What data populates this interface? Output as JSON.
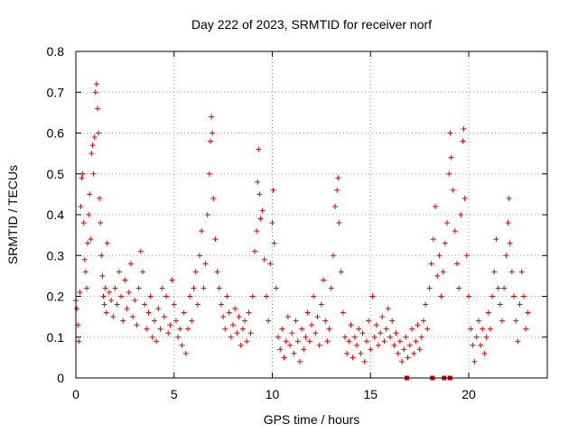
{
  "chart_data": {
    "type": "scatter",
    "title": "Day 222 of 2023, SRMTID for receiver norf",
    "xlabel": "GPS time / hours",
    "ylabel": "SRMTID / TECUs",
    "xlim": [
      0,
      24
    ],
    "ylim": [
      0,
      0.8
    ],
    "xticks": [
      0,
      5,
      10,
      15,
      20
    ],
    "yticks": [
      0,
      0.1,
      0.2,
      0.3,
      0.4,
      0.5,
      0.6,
      0.7,
      0.8
    ],
    "xtick_labels": [
      "0",
      "5",
      "10",
      "15",
      "20"
    ],
    "ytick_labels": [
      "0",
      "0.1",
      "0.2",
      "0.3",
      "0.4",
      "0.5",
      "0.6",
      "0.7",
      "0.8"
    ],
    "grid": true,
    "marker": "+",
    "color": "#e00000",
    "series": [
      {
        "name": "SRMTID",
        "points": [
          [
            0.0,
            0.19
          ],
          [
            0.05,
            0.17
          ],
          [
            0.1,
            0.13
          ],
          [
            0.15,
            0.09
          ],
          [
            0.2,
            0.21
          ],
          [
            0.25,
            0.42
          ],
          [
            0.3,
            0.49
          ],
          [
            0.35,
            0.5
          ],
          [
            0.4,
            0.38
          ],
          [
            0.45,
            0.29
          ],
          [
            0.5,
            0.26
          ],
          [
            0.55,
            0.22
          ],
          [
            0.6,
            0.33
          ],
          [
            0.65,
            0.4
          ],
          [
            0.7,
            0.45
          ],
          [
            0.75,
            0.34
          ],
          [
            0.8,
            0.55
          ],
          [
            0.85,
            0.57
          ],
          [
            0.9,
            0.5
          ],
          [
            0.95,
            0.59
          ],
          [
            1.0,
            0.7
          ],
          [
            1.05,
            0.72
          ],
          [
            1.1,
            0.66
          ],
          [
            1.15,
            0.6
          ],
          [
            1.2,
            0.44
          ],
          [
            1.25,
            0.38
          ],
          [
            1.3,
            0.3
          ],
          [
            1.35,
            0.25
          ],
          [
            1.4,
            0.2
          ],
          [
            1.45,
            0.18
          ],
          [
            1.5,
            0.22
          ],
          [
            1.55,
            0.16
          ],
          [
            1.6,
            0.33
          ],
          [
            1.7,
            0.21
          ],
          [
            1.8,
            0.19
          ],
          [
            1.9,
            0.15
          ],
          [
            2.0,
            0.22
          ],
          [
            2.1,
            0.18
          ],
          [
            2.2,
            0.26
          ],
          [
            2.3,
            0.2
          ],
          [
            2.4,
            0.14
          ],
          [
            2.5,
            0.24
          ],
          [
            2.6,
            0.17
          ],
          [
            2.7,
            0.21
          ],
          [
            2.8,
            0.28
          ],
          [
            2.9,
            0.15
          ],
          [
            3.0,
            0.19
          ],
          [
            3.1,
            0.13
          ],
          [
            3.2,
            0.22
          ],
          [
            3.3,
            0.31
          ],
          [
            3.4,
            0.26
          ],
          [
            3.5,
            0.18
          ],
          [
            3.6,
            0.12
          ],
          [
            3.7,
            0.16
          ],
          [
            3.8,
            0.2
          ],
          [
            3.9,
            0.1
          ],
          [
            4.0,
            0.14
          ],
          [
            4.1,
            0.09
          ],
          [
            4.2,
            0.17
          ],
          [
            4.3,
            0.12
          ],
          [
            4.4,
            0.22
          ],
          [
            4.5,
            0.15
          ],
          [
            4.6,
            0.2
          ],
          [
            4.7,
            0.11
          ],
          [
            4.8,
            0.13
          ],
          [
            4.9,
            0.24
          ],
          [
            5.0,
            0.18
          ],
          [
            5.1,
            0.14
          ],
          [
            5.2,
            0.1
          ],
          [
            5.3,
            0.12
          ],
          [
            5.4,
            0.08
          ],
          [
            5.5,
            0.16
          ],
          [
            5.6,
            0.06
          ],
          [
            5.7,
            0.12
          ],
          [
            5.8,
            0.2
          ],
          [
            5.9,
            0.14
          ],
          [
            6.0,
            0.22
          ],
          [
            6.1,
            0.26
          ],
          [
            6.2,
            0.18
          ],
          [
            6.3,
            0.3
          ],
          [
            6.4,
            0.36
          ],
          [
            6.5,
            0.22
          ],
          [
            6.6,
            0.28
          ],
          [
            6.7,
            0.4
          ],
          [
            6.8,
            0.5
          ],
          [
            6.85,
            0.58
          ],
          [
            6.9,
            0.64
          ],
          [
            6.95,
            0.6
          ],
          [
            7.0,
            0.44
          ],
          [
            7.1,
            0.34
          ],
          [
            7.2,
            0.26
          ],
          [
            7.3,
            0.22
          ],
          [
            7.4,
            0.18
          ],
          [
            7.5,
            0.15
          ],
          [
            7.6,
            0.12
          ],
          [
            7.7,
            0.2
          ],
          [
            7.8,
            0.16
          ],
          [
            7.9,
            0.1
          ],
          [
            8.0,
            0.13
          ],
          [
            8.1,
            0.17
          ],
          [
            8.2,
            0.11
          ],
          [
            8.3,
            0.15
          ],
          [
            8.4,
            0.08
          ],
          [
            8.5,
            0.12
          ],
          [
            8.6,
            0.14
          ],
          [
            8.7,
            0.09
          ],
          [
            8.8,
            0.16
          ],
          [
            8.9,
            0.11
          ],
          [
            9.0,
            0.2
          ],
          [
            9.1,
            0.31
          ],
          [
            9.2,
            0.36
          ],
          [
            9.25,
            0.48
          ],
          [
            9.3,
            0.56
          ],
          [
            9.35,
            0.45
          ],
          [
            9.4,
            0.39
          ],
          [
            9.5,
            0.41
          ],
          [
            9.6,
            0.29
          ],
          [
            9.7,
            0.2
          ],
          [
            9.8,
            0.14
          ],
          [
            9.9,
            0.28
          ],
          [
            10.0,
            0.38
          ],
          [
            10.05,
            0.46
          ],
          [
            10.1,
            0.33
          ],
          [
            10.2,
            0.22
          ],
          [
            10.3,
            0.1
          ],
          [
            10.4,
            0.07
          ],
          [
            10.5,
            0.12
          ],
          [
            10.6,
            0.05
          ],
          [
            10.7,
            0.09
          ],
          [
            10.8,
            0.15
          ],
          [
            10.9,
            0.08
          ],
          [
            11.0,
            0.11
          ],
          [
            11.1,
            0.06
          ],
          [
            11.2,
            0.14
          ],
          [
            11.3,
            0.09
          ],
          [
            11.4,
            0.04
          ],
          [
            11.5,
            0.12
          ],
          [
            11.6,
            0.07
          ],
          [
            11.7,
            0.1
          ],
          [
            11.8,
            0.16
          ],
          [
            11.9,
            0.09
          ],
          [
            12.0,
            0.13
          ],
          [
            12.1,
            0.2
          ],
          [
            12.2,
            0.11
          ],
          [
            12.3,
            0.15
          ],
          [
            12.4,
            0.08
          ],
          [
            12.5,
            0.18
          ],
          [
            12.6,
            0.24
          ],
          [
            12.7,
            0.14
          ],
          [
            12.8,
            0.09
          ],
          [
            12.9,
            0.12
          ],
          [
            13.0,
            0.22
          ],
          [
            13.1,
            0.3
          ],
          [
            13.2,
            0.42
          ],
          [
            13.3,
            0.46
          ],
          [
            13.35,
            0.49
          ],
          [
            13.4,
            0.38
          ],
          [
            13.5,
            0.26
          ],
          [
            13.6,
            0.16
          ],
          [
            13.7,
            0.1
          ],
          [
            13.8,
            0.06
          ],
          [
            13.9,
            0.09
          ],
          [
            14.0,
            0.13
          ],
          [
            14.1,
            0.05
          ],
          [
            14.2,
            0.1
          ],
          [
            14.3,
            0.08
          ],
          [
            14.4,
            0.12
          ],
          [
            14.5,
            0.06
          ],
          [
            14.6,
            0.11
          ],
          [
            14.7,
            0.04
          ],
          [
            14.8,
            0.09
          ],
          [
            14.9,
            0.14
          ],
          [
            15.0,
            0.07
          ],
          [
            15.1,
            0.2
          ],
          [
            15.2,
            0.1
          ],
          [
            15.3,
            0.13
          ],
          [
            15.4,
            0.08
          ],
          [
            15.5,
            0.11
          ],
          [
            15.6,
            0.15
          ],
          [
            15.7,
            0.09
          ],
          [
            15.8,
            0.12
          ],
          [
            15.9,
            0.17
          ],
          [
            16.0,
            0.1
          ],
          [
            16.1,
            0.14
          ],
          [
            16.2,
            0.08
          ],
          [
            16.3,
            0.11
          ],
          [
            16.4,
            0.06
          ],
          [
            16.5,
            0.09
          ],
          [
            16.6,
            0.04
          ],
          [
            16.7,
            0.07
          ],
          [
            16.8,
            0.1
          ],
          [
            16.9,
            0.05
          ],
          [
            17.0,
            0.08
          ],
          [
            17.1,
            0.12
          ],
          [
            17.2,
            0.06
          ],
          [
            17.3,
            0.09
          ],
          [
            17.4,
            0.13
          ],
          [
            17.5,
            0.07
          ],
          [
            17.6,
            0.1
          ],
          [
            17.7,
            0.14
          ],
          [
            17.8,
            0.18
          ],
          [
            17.9,
            0.12
          ],
          [
            18.0,
            0.22
          ],
          [
            18.1,
            0.28
          ],
          [
            18.2,
            0.34
          ],
          [
            18.3,
            0.42
          ],
          [
            18.4,
            0.25
          ],
          [
            18.5,
            0.3
          ],
          [
            18.6,
            0.2
          ],
          [
            18.7,
            0.26
          ],
          [
            18.8,
            0.33
          ],
          [
            18.9,
            0.38
          ],
          [
            19.0,
            0.5
          ],
          [
            19.05,
            0.6
          ],
          [
            19.1,
            0.54
          ],
          [
            19.2,
            0.46
          ],
          [
            19.3,
            0.36
          ],
          [
            19.4,
            0.28
          ],
          [
            19.5,
            0.22
          ],
          [
            19.6,
            0.4
          ],
          [
            19.7,
            0.58
          ],
          [
            19.75,
            0.61
          ],
          [
            19.8,
            0.44
          ],
          [
            19.9,
            0.3
          ],
          [
            20.0,
            0.2
          ],
          [
            20.1,
            0.12
          ],
          [
            20.2,
            0.08
          ],
          [
            20.3,
            0.04
          ],
          [
            20.4,
            0.1
          ],
          [
            20.5,
            0.14
          ],
          [
            20.6,
            0.08
          ],
          [
            20.7,
            0.12
          ],
          [
            20.8,
            0.06
          ],
          [
            20.9,
            0.1
          ],
          [
            21.0,
            0.16
          ],
          [
            21.1,
            0.12
          ],
          [
            21.2,
            0.2
          ],
          [
            21.3,
            0.26
          ],
          [
            21.4,
            0.34
          ],
          [
            21.5,
            0.22
          ],
          [
            21.6,
            0.18
          ],
          [
            21.7,
            0.14
          ],
          [
            21.8,
            0.22
          ],
          [
            21.9,
            0.3
          ],
          [
            22.0,
            0.38
          ],
          [
            22.05,
            0.44
          ],
          [
            22.1,
            0.33
          ],
          [
            22.2,
            0.26
          ],
          [
            22.3,
            0.2
          ],
          [
            22.4,
            0.14
          ],
          [
            22.5,
            0.09
          ],
          [
            22.6,
            0.18
          ],
          [
            22.7,
            0.26
          ],
          [
            22.8,
            0.2
          ],
          [
            22.9,
            0.12
          ],
          [
            23.0,
            0.16
          ]
        ]
      }
    ],
    "baseline_markers_x": [
      16.85,
      18.15,
      18.75,
      19.05
    ]
  }
}
